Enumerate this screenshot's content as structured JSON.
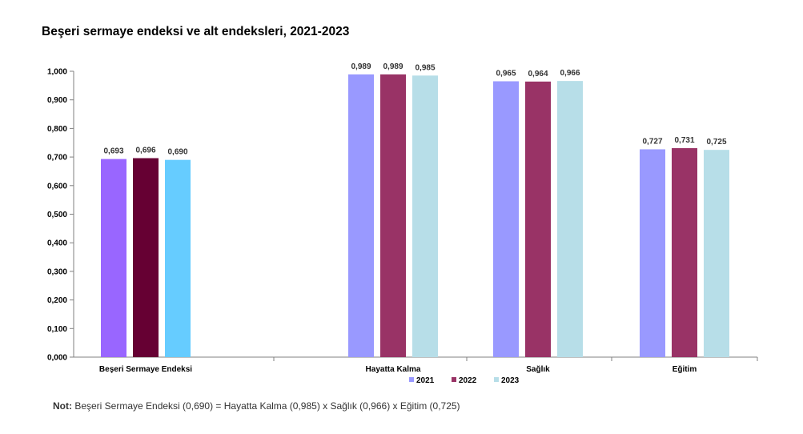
{
  "title": "Beşeri sermaye endeksi ve alt endeksleri, 2021-2023",
  "note": {
    "label": "Not:",
    "text": " Beşeri Sermaye Endeksi (0,690) = Hayatta Kalma (0,985) x Sağlık (0,966) x Eğitim (0,725)"
  },
  "chart_data": {
    "type": "bar",
    "title": "Beşeri sermaye endeksi ve alt endeksleri, 2021-2023",
    "categories": [
      "Beşeri Sermaye Endeksi",
      "Hayatta Kalma",
      "Sağlık",
      "Eğitim"
    ],
    "series": [
      {
        "name": "2021",
        "values": [
          0.693,
          0.989,
          0.965,
          0.727
        ]
      },
      {
        "name": "2022",
        "values": [
          0.696,
          0.989,
          0.964,
          0.731
        ]
      },
      {
        "name": "2023",
        "values": [
          0.69,
          0.985,
          0.966,
          0.725
        ]
      }
    ],
    "value_labels": [
      [
        "0,693",
        "0,989",
        "0,965",
        "0,727"
      ],
      [
        "0,696",
        "0,989",
        "0,964",
        "0,731"
      ],
      [
        "0,690",
        "0,985",
        "0,966",
        "0,725"
      ]
    ],
    "first_category_colors": [
      "#9966ff",
      "#660033",
      "#66ccff"
    ],
    "series_colors": [
      "#9999ff",
      "#993366",
      "#b7dee8"
    ],
    "ylim": [
      0,
      1
    ],
    "yticks": [
      "0,000",
      "0,100",
      "0,200",
      "0,300",
      "0,400",
      "0,500",
      "0,600",
      "0,700",
      "0,800",
      "0,900",
      "1,000"
    ],
    "xlabel": "",
    "ylabel": "",
    "grid": false,
    "legend": "bottom-right"
  }
}
